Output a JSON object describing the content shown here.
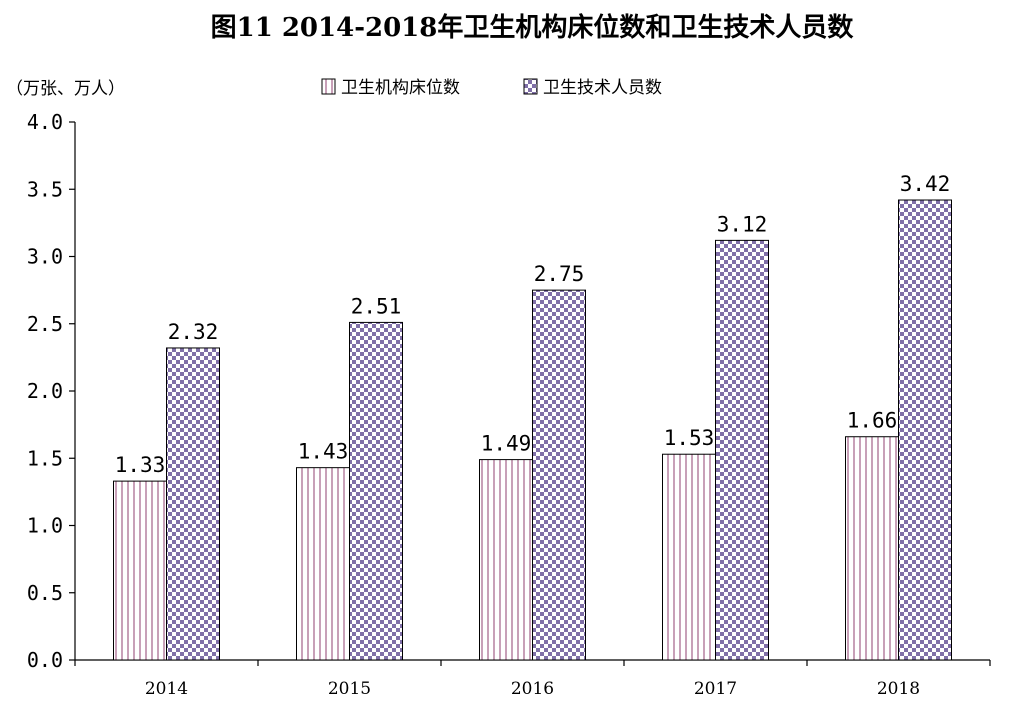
{
  "chart_data": {
    "type": "bar",
    "title": "图11    2014-2018年卫生机构床位数和卫生技术人员数",
    "ylabel": "（万张、万人）",
    "xlabel": "",
    "categories": [
      "2014",
      "2015",
      "2016",
      "2017",
      "2018"
    ],
    "series": [
      {
        "name": "卫生机构床位数",
        "values": [
          1.33,
          1.43,
          1.49,
          1.53,
          1.66
        ],
        "value_labels": [
          "1.33",
          "1.43",
          "1.49",
          "1.53",
          "1.66"
        ],
        "color": "#c8a0b8",
        "pattern": "vertical-stripes"
      },
      {
        "name": "卫生技术人员数",
        "values": [
          2.32,
          2.51,
          2.75,
          3.12,
          3.42
        ],
        "value_labels": [
          "2.32",
          "2.51",
          "2.75",
          "3.12",
          "3.42"
        ],
        "color": "#8070a8",
        "pattern": "checkerboard"
      }
    ],
    "ylim": [
      0,
      4.0
    ],
    "yticks": [
      "0.0",
      "0.5",
      "1.0",
      "1.5",
      "2.0",
      "2.5",
      "3.0",
      "3.5",
      "4.0"
    ],
    "grid": false,
    "legend_position": "top-center"
  }
}
